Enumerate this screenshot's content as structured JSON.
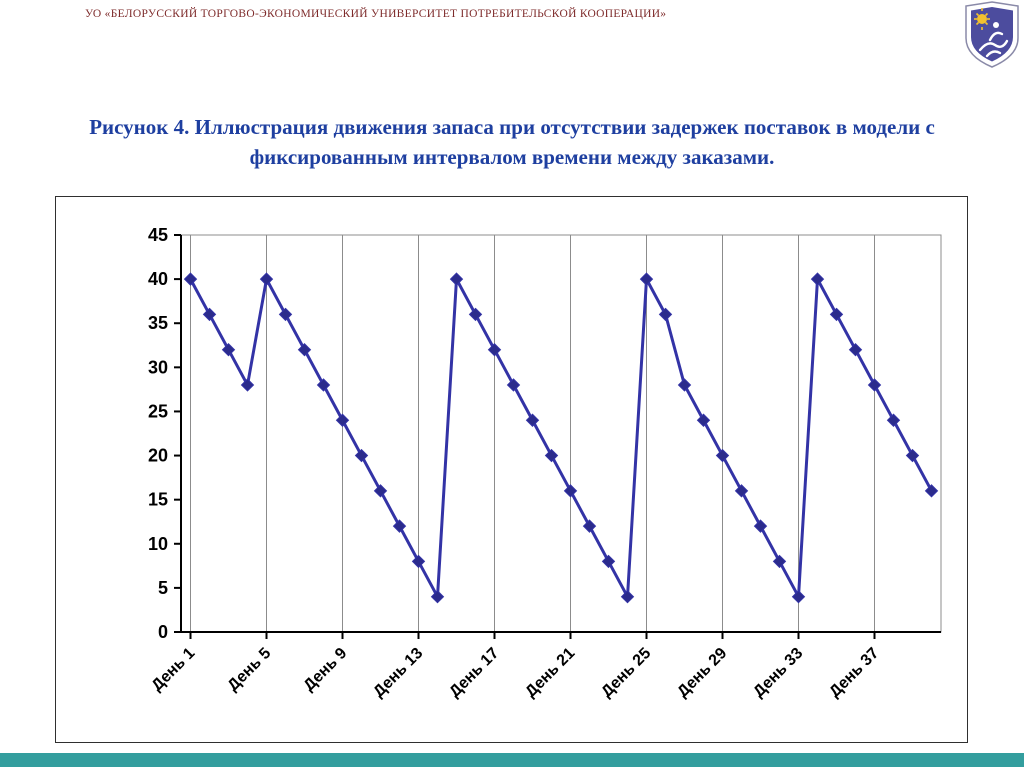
{
  "header": {
    "institution": "УО «БЕЛОРУССКИЙ ТОРГОВО-ЭКОНОМИЧЕСКИЙ УНИВЕРСИТЕТ ПОТРЕБИТЕЛЬСКОЙ КООПЕРАЦИИ»"
  },
  "caption": {
    "text": "Рисунок 4. Иллюстрация движения запаса при отсутствии задержек поставок в модели с фиксированным интервалом времени между заказами."
  },
  "logo": {
    "description": "university-emblem-shield"
  },
  "colors": {
    "maroon": "#7E2B2B",
    "navy": "#1E3FA0",
    "teal": "#339E9E",
    "frame_border": "#2F2F2F",
    "grid": "#8C8C8C",
    "axis": "#000000",
    "logo_indigo": "#4C4C9E",
    "logo_sun": "#F2C12E"
  },
  "chart_data": {
    "type": "line",
    "title": "",
    "xlabel": "",
    "ylabel": "",
    "x_labels": [
      "День 1",
      "День 5",
      "День 9",
      "День 13",
      "День 17",
      "День 21",
      "День 25",
      "День 29",
      "День 33",
      "День 37"
    ],
    "x_tick_interval": 4,
    "n_points": 40,
    "values": [
      40,
      36,
      32,
      28,
      40,
      36,
      32,
      28,
      24,
      20,
      16,
      12,
      8,
      4,
      40,
      36,
      32,
      28,
      24,
      20,
      16,
      12,
      8,
      4,
      40,
      36,
      28,
      24,
      20,
      16,
      12,
      8,
      4,
      40,
      36,
      32,
      28,
      24,
      20,
      16
    ],
    "ylim": [
      0,
      45
    ],
    "y_ticks": [
      0,
      5,
      10,
      15,
      20,
      25,
      30,
      35,
      40,
      45
    ],
    "grid": "vertical",
    "legend": "none",
    "line_color": "#3333A6",
    "marker": "diamond",
    "marker_color": "#2B2B8C"
  }
}
